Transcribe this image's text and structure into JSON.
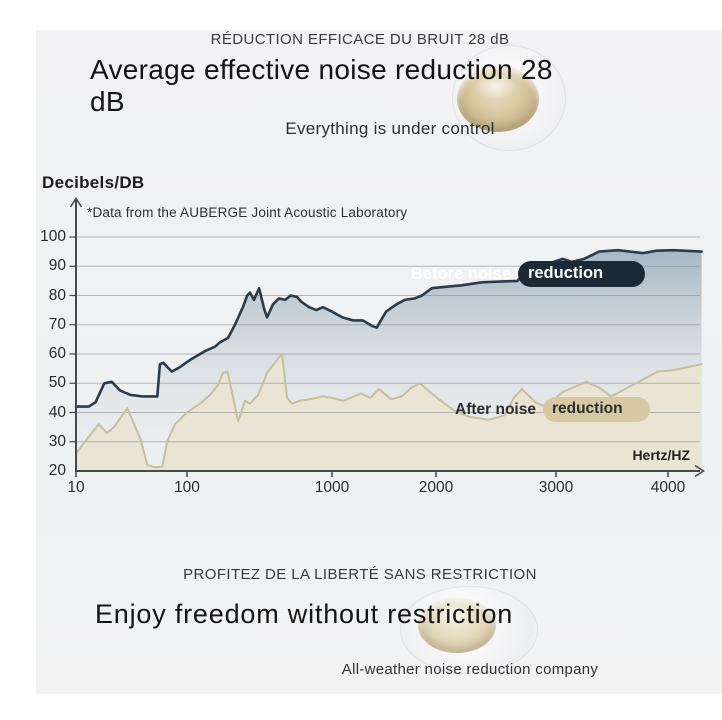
{
  "hero": {
    "subtitle_fr": "RÉDUCTION EFFICACE DU BRUIT 28 dB",
    "title_line1": "Average effective noise reduction 28",
    "title_line2": "dB",
    "tagline": "Everything is under control"
  },
  "footer": {
    "subtitle_fr": "PROFITEZ DE LA LIBERTÉ SANS RESTRICTION",
    "title": "Enjoy freedom without restriction",
    "tagline": "All-weather noise reduction company"
  },
  "colors": {
    "page_bg": "#ffffff",
    "panel_bg": "#f1f1f3",
    "grid": "#787e85",
    "axis": "#45494d",
    "heading_text": "#141414",
    "secondary_text": "#3a3a3a"
  },
  "chart_data": {
    "type": "area",
    "y_axis_title": "Decibels/DB",
    "xlabel": "Hertz/HZ",
    "attribution": "*Data from the AUBERGE Joint Acoustic Laboratory",
    "ylim": [
      20,
      100
    ],
    "xlim": [
      10,
      4300
    ],
    "grid": true,
    "x_scale_note": "logarithmic 10-1000 Hz, near-linear 1000-4000 Hz",
    "legend_position": "overlay",
    "yticks": [
      20,
      30,
      40,
      50,
      60,
      70,
      80,
      90,
      100
    ],
    "xticks": [
      10,
      100,
      1000,
      2000,
      3000,
      4000
    ],
    "legend": [
      {
        "name": "Before noise reduction",
        "prefix": "Before noise",
        "pill_word": "reduction",
        "pill_color": "#1b2936",
        "text_color": "#ffffff"
      },
      {
        "name": "After noise reduction",
        "prefix": "After noise",
        "pill_word": "reduction",
        "pill_color": "#d5c8a2",
        "text_color": "#2c2c2c"
      }
    ],
    "series": [
      {
        "name": "Before noise reduction",
        "color": "#2b3b4c",
        "fill": "gradient-blue",
        "points": [
          [
            10,
            42
          ],
          [
            13,
            42
          ],
          [
            15,
            43.5
          ],
          [
            18,
            50
          ],
          [
            21,
            50.5
          ],
          [
            25,
            47.5
          ],
          [
            31,
            46
          ],
          [
            40,
            45.5
          ],
          [
            50,
            45.5
          ],
          [
            54,
            45.5
          ],
          [
            57,
            56.5
          ],
          [
            61,
            57
          ],
          [
            73,
            54
          ],
          [
            86,
            55.5
          ],
          [
            105,
            58
          ],
          [
            133,
            61
          ],
          [
            156,
            62.5
          ],
          [
            169,
            64
          ],
          [
            192,
            65.5
          ],
          [
            214,
            70
          ],
          [
            243,
            76
          ],
          [
            260,
            80
          ],
          [
            272,
            81
          ],
          [
            290,
            78.5
          ],
          [
            314,
            82.5
          ],
          [
            340,
            75.5
          ],
          [
            356,
            72.5
          ],
          [
            392,
            77
          ],
          [
            430,
            79
          ],
          [
            475,
            78.5
          ],
          [
            520,
            80
          ],
          [
            575,
            79.5
          ],
          [
            610,
            78
          ],
          [
            695,
            76
          ],
          [
            780,
            75
          ],
          [
            865,
            76
          ],
          [
            1000,
            74.5
          ],
          [
            1100,
            72.5
          ],
          [
            1200,
            71.5
          ],
          [
            1295,
            71.5
          ],
          [
            1390,
            69.5
          ],
          [
            1430,
            69
          ],
          [
            1520,
            74.5
          ],
          [
            1620,
            77
          ],
          [
            1700,
            78.5
          ],
          [
            1795,
            79
          ],
          [
            1865,
            80
          ],
          [
            1960,
            82.5
          ],
          [
            2090,
            83
          ],
          [
            2215,
            83.5
          ],
          [
            2380,
            84.5
          ],
          [
            2680,
            85
          ],
          [
            2740,
            88.5
          ],
          [
            2870,
            90
          ],
          [
            3060,
            92.5
          ],
          [
            3140,
            91.5
          ],
          [
            3250,
            92.5
          ],
          [
            3385,
            95
          ],
          [
            3555,
            95.5
          ],
          [
            3775,
            94.5
          ],
          [
            3900,
            95.3
          ],
          [
            4050,
            95.5
          ],
          [
            4300,
            95
          ]
        ]
      },
      {
        "name": "After noise reduction",
        "color": "#c6bf9b",
        "fill": "#e9e4d3",
        "points": [
          [
            10,
            26
          ],
          [
            12,
            30
          ],
          [
            16,
            36
          ],
          [
            19,
            33
          ],
          [
            22,
            35
          ],
          [
            29,
            41.5
          ],
          [
            38,
            31
          ],
          [
            44,
            22
          ],
          [
            51,
            21.3
          ],
          [
            60,
            21.5
          ],
          [
            66,
            30
          ],
          [
            78,
            36
          ],
          [
            100,
            40
          ],
          [
            123,
            43
          ],
          [
            144,
            46
          ],
          [
            164,
            49.5
          ],
          [
            177,
            53.5
          ],
          [
            190,
            54
          ],
          [
            204,
            47
          ],
          [
            225,
            37
          ],
          [
            251,
            44
          ],
          [
            272,
            43
          ],
          [
            310,
            46
          ],
          [
            356,
            53.5
          ],
          [
            418,
            58
          ],
          [
            452,
            60
          ],
          [
            490,
            45
          ],
          [
            530,
            43
          ],
          [
            600,
            44
          ],
          [
            705,
            44.5
          ],
          [
            865,
            45.5
          ],
          [
            1000,
            45
          ],
          [
            1110,
            44
          ],
          [
            1275,
            46.5
          ],
          [
            1370,
            45
          ],
          [
            1450,
            48
          ],
          [
            1570,
            44.5
          ],
          [
            1670,
            45.5
          ],
          [
            1765,
            48.5
          ],
          [
            1845,
            50
          ],
          [
            1940,
            47
          ],
          [
            2025,
            44.5
          ],
          [
            2155,
            40.5
          ],
          [
            2280,
            38.5
          ],
          [
            2440,
            37.5
          ],
          [
            2570,
            39
          ],
          [
            2650,
            45
          ],
          [
            2715,
            48
          ],
          [
            2830,
            43.5
          ],
          [
            2910,
            42
          ],
          [
            3060,
            47
          ],
          [
            3270,
            50.5
          ],
          [
            3385,
            48.5
          ],
          [
            3495,
            45.5
          ],
          [
            3615,
            48
          ],
          [
            3815,
            52
          ],
          [
            3905,
            54
          ],
          [
            4050,
            54.5
          ],
          [
            4300,
            56.5
          ]
        ]
      }
    ]
  }
}
